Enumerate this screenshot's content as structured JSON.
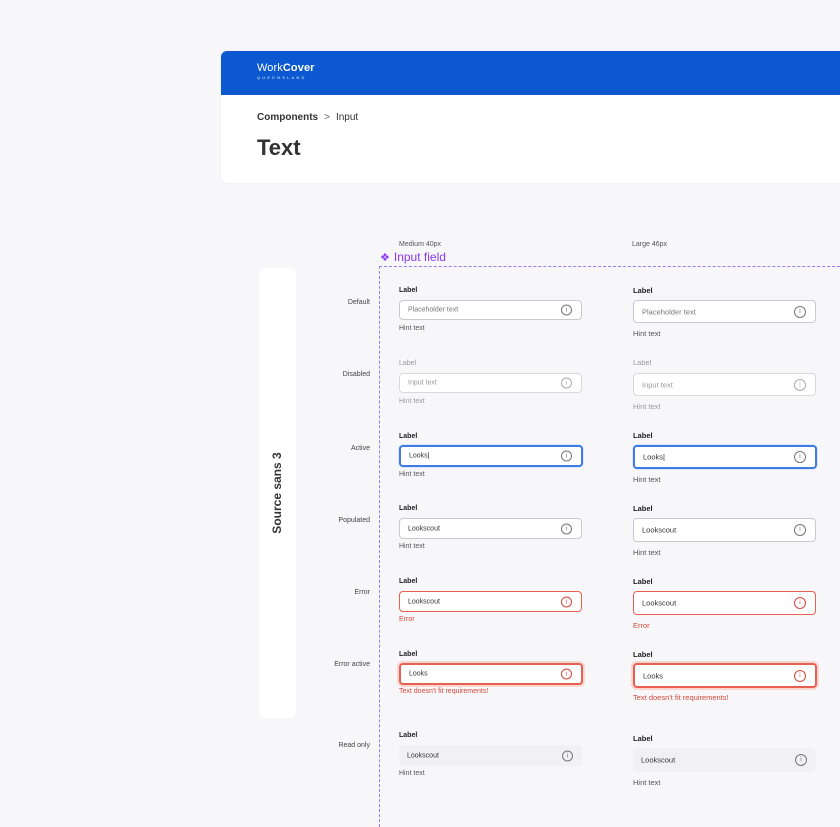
{
  "header": {
    "logo_part1": "Work",
    "logo_part2": "Cover",
    "logo_sub": "QUEENSLAND",
    "breadcrumb_root": "Components",
    "breadcrumb_separator": ">",
    "breadcrumb_current": "Input",
    "page_title": "Text"
  },
  "spec": {
    "column_medium": "Medium 40px",
    "column_large": "Large 46px",
    "component_name": "Input field",
    "font_name": "Source sans 3"
  },
  "states": {
    "default": {
      "label": "Default",
      "field_label": "Label",
      "value": "Placeholder text",
      "hint": "Hint text"
    },
    "disabled": {
      "label": "Disabled",
      "field_label": "Label",
      "value": "Input text",
      "hint": "Hint text"
    },
    "active": {
      "label": "Active",
      "field_label": "Label",
      "value": "Looks",
      "hint": "Hint text"
    },
    "populated": {
      "label": "Populated",
      "field_label": "Label",
      "value": "Lookscout",
      "hint": "Hint text"
    },
    "error": {
      "label": "Error",
      "field_label": "Label",
      "value": "Lookscout",
      "hint": "Error"
    },
    "error_active": {
      "label": "Error active",
      "field_label": "Label",
      "value": "Looks",
      "hint": "Text doesn't fit requirements!"
    },
    "read_only": {
      "label": "Read only",
      "field_label": "Label",
      "value": "Lookscout",
      "hint": "Hint text"
    }
  },
  "icons": {
    "info": "info-icon",
    "component": "component-diamond-icon"
  },
  "colors": {
    "brand_blue": "#0b58d0",
    "component_purple": "#8a38f5",
    "active_blue": "#3f7be0",
    "error_red": "#d6483a"
  }
}
